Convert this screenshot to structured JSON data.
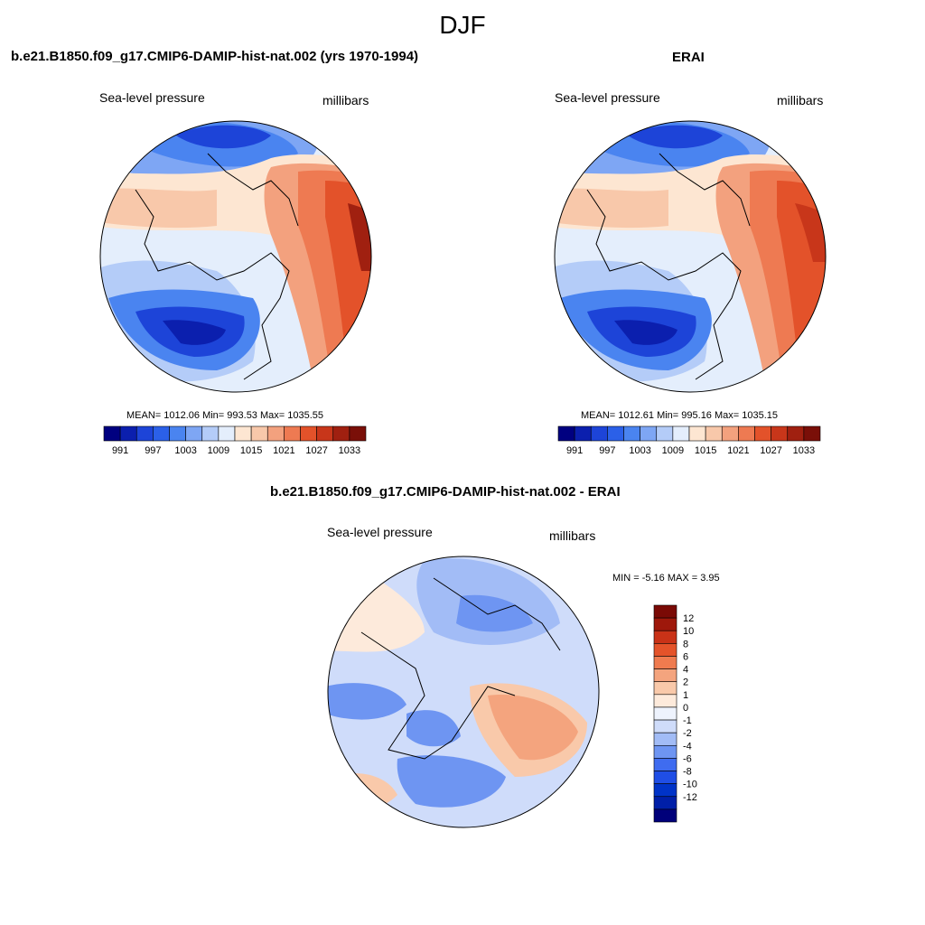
{
  "figure_title": "DJF",
  "colors": {
    "abs_levels": [
      "#000080",
      "#0b1fae",
      "#1d44d8",
      "#2b60e8",
      "#4a84f0",
      "#7ea6f4",
      "#b4ccf8",
      "#e4eefc",
      "#fde6d2",
      "#f8c8aa",
      "#f3a17e",
      "#ee7a52",
      "#e3522a",
      "#c8361a",
      "#a02010",
      "#7a0f08"
    ],
    "diff_levels": [
      "#00007a",
      "#001fa8",
      "#0033c8",
      "#1f4ee6",
      "#3f6cf0",
      "#6e95f2",
      "#a2bcf6",
      "#cfdcfa",
      "#eef3fd",
      "#fdeadb",
      "#f9c9aa",
      "#f4a47e",
      "#ef7b4f",
      "#e4532a",
      "#c93217",
      "#9e180b",
      "#7a0a05"
    ]
  },
  "chart_data": [
    {
      "type": "heatmap",
      "title": "b.e21.B1850.f09_g17.CMIP6-DAMIP-hist-nat.002 (yrs 1970-1994)",
      "left_label": "Sea-level pressure",
      "right_label": "millibars",
      "stats": "MEAN= 1012.06  Min= 993.53  Max= 1035.55",
      "colorbar_ticks": [
        "991",
        "997",
        "1003",
        "1009",
        "1015",
        "1021",
        "1027",
        "1033"
      ]
    },
    {
      "type": "heatmap",
      "title": "ERAI",
      "left_label": "Sea-level pressure",
      "right_label": "millibars",
      "stats": "MEAN= 1012.61  Min= 995.16  Max= 1035.15",
      "colorbar_ticks": [
        "991",
        "997",
        "1003",
        "1009",
        "1015",
        "1021",
        "1027",
        "1033"
      ]
    },
    {
      "type": "heatmap",
      "title": "b.e21.B1850.f09_g17.CMIP6-DAMIP-hist-nat.002 - ERAI",
      "left_label": "Sea-level pressure",
      "right_label": "millibars",
      "stats": "MIN =  -5.16 MAX =   3.95",
      "colorbar_ticks": [
        "12",
        "10",
        "8",
        "6",
        "4",
        "2",
        "1",
        "0",
        "-1",
        "-2",
        "-4",
        "-6",
        "-8",
        "-10",
        "-12"
      ]
    }
  ]
}
